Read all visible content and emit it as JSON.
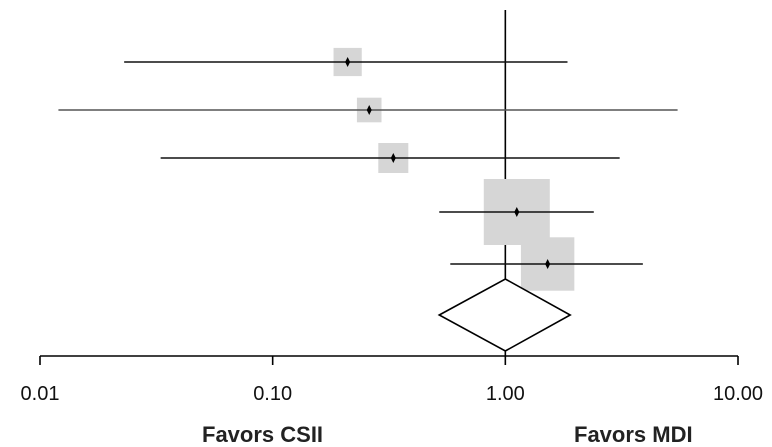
{
  "chart_data": {
    "type": "forest",
    "x_scale": "log",
    "xlim": [
      0.01,
      10
    ],
    "x_ticks": [
      0.01,
      0.1,
      1,
      10
    ],
    "x_tick_labels": [
      "0.01",
      "0.10",
      "1.00",
      "10.00"
    ],
    "reference_line": 1,
    "favor_left": "Favors CSII",
    "favor_right": "Favors MDI",
    "studies": [
      {
        "estimate": 0.21,
        "ci_low": 0.023,
        "ci_high": 1.85,
        "weight": 0.9
      },
      {
        "estimate": 0.26,
        "ci_low": 0.012,
        "ci_high": 5.5,
        "weight": 0.7
      },
      {
        "estimate": 0.33,
        "ci_low": 0.033,
        "ci_high": 3.1,
        "weight": 1.0
      },
      {
        "estimate": 1.12,
        "ci_low": 0.52,
        "ci_high": 2.4,
        "weight": 3.0
      },
      {
        "estimate": 1.52,
        "ci_low": 0.58,
        "ci_high": 3.9,
        "weight": 2.3
      }
    ],
    "pooled": {
      "estimate": 1.0,
      "ci_low": 0.52,
      "ci_high": 1.9
    },
    "grid": false
  }
}
